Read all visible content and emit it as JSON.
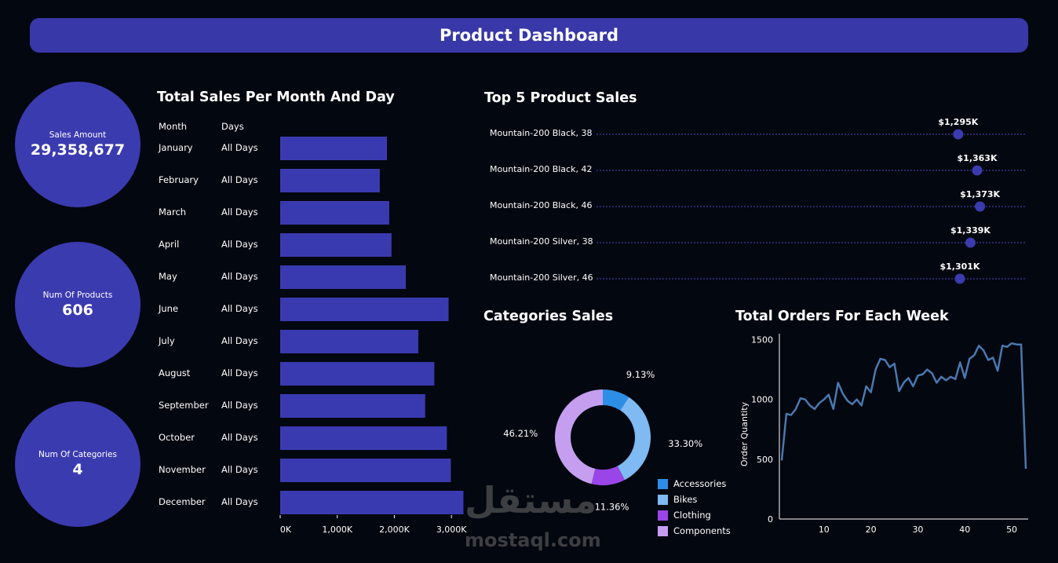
{
  "header": {
    "title": "Product Dashboard"
  },
  "kpis": [
    {
      "label": "Sales Amount",
      "value": "29,358,677"
    },
    {
      "label": "Num Of Products",
      "value": "606"
    },
    {
      "label": "Num Of Categories",
      "value": "4"
    }
  ],
  "colors": {
    "accent": "#3b3bb0",
    "bar": "#3a3ab0",
    "line": "#4a78b0",
    "background": "#03070f"
  },
  "chart_data": [
    {
      "type": "bar",
      "title": "Total Sales Per Month And Day",
      "column_headers": [
        "Month",
        "Days"
      ],
      "categories": [
        "January",
        "February",
        "March",
        "April",
        "May",
        "June",
        "July",
        "August",
        "September",
        "October",
        "November",
        "December"
      ],
      "days": [
        "All Days",
        "All Days",
        "All Days",
        "All Days",
        "All Days",
        "All Days",
        "All Days",
        "All Days",
        "All Days",
        "All Days",
        "All Days",
        "All Days"
      ],
      "values": [
        1870,
        1745,
        1910,
        1950,
        2200,
        2950,
        2420,
        2700,
        2540,
        2920,
        2990,
        3210
      ],
      "xlim": [
        0,
        3300
      ],
      "xticks": [
        0,
        1000,
        2000,
        3000
      ],
      "xtick_labels": [
        "0K",
        "1,000K",
        "2,000K",
        "3,000K"
      ]
    },
    {
      "type": "scatter",
      "title": "Top 5 Product Sales",
      "categories": [
        "Mountain-200 Black, 38",
        "Mountain-200 Black, 42",
        "Mountain-200 Black, 46",
        "Mountain-200 Silver, 38",
        "Mountain-200 Silver, 46"
      ],
      "values": [
        1295,
        1363,
        1373,
        1339,
        1301
      ],
      "labels": [
        "$1,295K",
        "$1,363K",
        "$1,373K",
        "$1,339K",
        "$1,301K"
      ],
      "xlim": [
        0,
        1540
      ]
    },
    {
      "type": "pie",
      "title": "Categories Sales",
      "categories": [
        "Accessories",
        "Bikes",
        "Clothing",
        "Components"
      ],
      "values": [
        9.13,
        33.3,
        11.36,
        46.21
      ],
      "labels": [
        "9.13%",
        "33.30%",
        "11.36%",
        "46.21%"
      ],
      "colors": [
        "#2d8ee6",
        "#7fbaf2",
        "#9a45e8",
        "#c59ef0"
      ]
    },
    {
      "type": "line",
      "title": "Total Orders For Each Week",
      "ylabel": "Order Quantity",
      "x": [
        1,
        2,
        3,
        4,
        5,
        6,
        7,
        8,
        9,
        10,
        11,
        12,
        13,
        14,
        15,
        16,
        17,
        18,
        19,
        20,
        21,
        22,
        23,
        24,
        25,
        26,
        27,
        28,
        29,
        30,
        31,
        32,
        33,
        34,
        35,
        36,
        37,
        38,
        39,
        40,
        41,
        42,
        43,
        44,
        45,
        46,
        47,
        48,
        49,
        50,
        51,
        52,
        53
      ],
      "values": [
        490,
        880,
        870,
        920,
        1010,
        1000,
        950,
        920,
        970,
        1000,
        1040,
        920,
        1140,
        1050,
        990,
        960,
        1000,
        950,
        1110,
        1060,
        1250,
        1340,
        1330,
        1270,
        1300,
        1070,
        1140,
        1180,
        1110,
        1200,
        1210,
        1250,
        1220,
        1140,
        1190,
        1160,
        1190,
        1170,
        1310,
        1180,
        1340,
        1370,
        1450,
        1410,
        1330,
        1350,
        1240,
        1450,
        1440,
        1470,
        1460,
        1460,
        420
      ],
      "xlim": [
        0.5,
        53.5
      ],
      "ylim": [
        0,
        1550
      ],
      "xticks": [
        10,
        20,
        30,
        40,
        50
      ],
      "yticks": [
        0,
        500,
        1000,
        1500
      ]
    }
  ],
  "watermark": {
    "arabic": "مستقل",
    "latin": "mostaql.com"
  }
}
